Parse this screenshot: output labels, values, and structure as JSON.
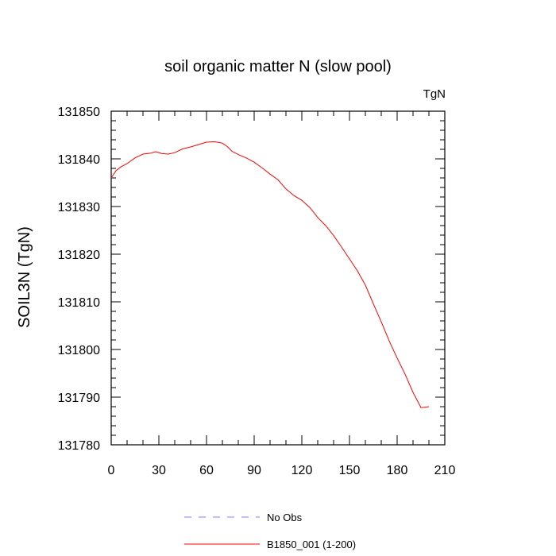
{
  "chart_data": {
    "type": "line",
    "title": "soil organic matter N (slow pool)",
    "units_label": "TgN",
    "xlabel": "",
    "ylabel": "SOIL3N  (TgN)",
    "xlim": [
      0,
      210
    ],
    "ylim": [
      131780,
      131850
    ],
    "x_ticks": [
      "0",
      "30",
      "60",
      "90",
      "120",
      "150",
      "180",
      "210"
    ],
    "y_ticks": [
      "131780",
      "131790",
      "131800",
      "131810",
      "131820",
      "131830",
      "131840",
      "131850"
    ],
    "grid": false,
    "legend_position": "bottom",
    "series": [
      {
        "name": "No Obs",
        "color": "#8080ff",
        "dash": "dashed",
        "x": [],
        "y": []
      },
      {
        "name": "B1850_001 (1-200)",
        "color": "#ff0000",
        "dash": "solid",
        "x": [
          0,
          3,
          6,
          10,
          15,
          20,
          25,
          28,
          32,
          36,
          40,
          45,
          50,
          55,
          60,
          65,
          70,
          73,
          76,
          80,
          85,
          90,
          95,
          100,
          105,
          110,
          115,
          120,
          125,
          130,
          135,
          140,
          145,
          150,
          155,
          160,
          165,
          170,
          175,
          180,
          185,
          190,
          195,
          200
        ],
        "y": [
          131836,
          131837.5,
          131838.3,
          131839,
          131840.2,
          131841,
          131841.2,
          131841.5,
          131841.1,
          131841,
          131841.3,
          131842.1,
          131842.5,
          131843,
          131843.5,
          131843.6,
          131843.3,
          131842.6,
          131841.6,
          131840.9,
          131840.2,
          131839.3,
          131838.1,
          131836.8,
          131835.6,
          131833.7,
          131832.3,
          131831.3,
          131829.8,
          131827.7,
          131826,
          131823.9,
          131821.5,
          131819,
          131816.5,
          131813.5,
          131809.6,
          131805.8,
          131801.8,
          131798.2,
          131794.8,
          131791,
          131787.8,
          131788
        ]
      }
    ]
  }
}
